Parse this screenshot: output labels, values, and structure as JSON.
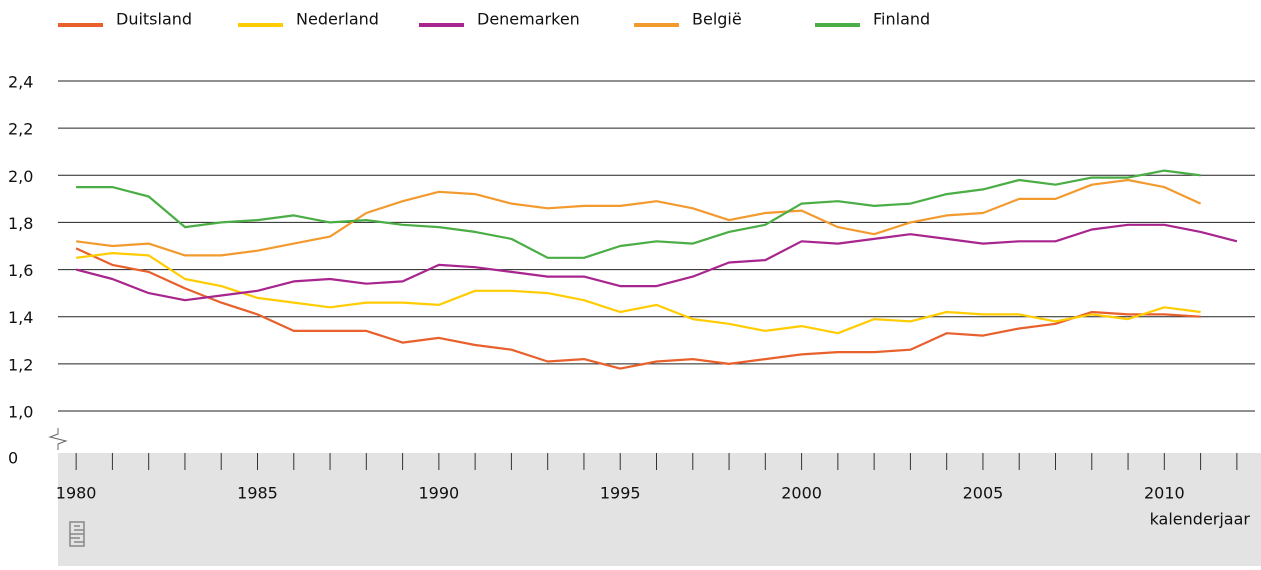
{
  "chart_data": {
    "type": "line",
    "x": [
      1980,
      1981,
      1982,
      1983,
      1984,
      1985,
      1986,
      1987,
      1988,
      1989,
      1990,
      1991,
      1992,
      1993,
      1994,
      1995,
      1996,
      1997,
      1998,
      1999,
      2000,
      2001,
      2002,
      2003,
      2004,
      2005,
      2006,
      2007,
      2008,
      2009,
      2010,
      2011,
      2012
    ],
    "series": [
      {
        "name": "Duitsland",
        "color": "#e8602c",
        "values": [
          1.69,
          1.62,
          1.59,
          1.52,
          1.46,
          1.41,
          1.34,
          1.34,
          1.34,
          1.29,
          1.31,
          1.28,
          1.26,
          1.21,
          1.22,
          1.18,
          1.21,
          1.22,
          1.2,
          1.22,
          1.24,
          1.25,
          1.25,
          1.26,
          1.33,
          1.32,
          1.35,
          1.37,
          1.42,
          1.41,
          1.41,
          1.4,
          null
        ]
      },
      {
        "name": "Nederland",
        "color": "#ffcc00",
        "values": [
          1.65,
          1.67,
          1.66,
          1.56,
          1.53,
          1.48,
          1.46,
          1.44,
          1.46,
          1.46,
          1.45,
          1.51,
          1.51,
          1.5,
          1.47,
          1.42,
          1.45,
          1.39,
          1.37,
          1.34,
          1.36,
          1.33,
          1.39,
          1.38,
          1.42,
          1.41,
          1.41,
          1.38,
          1.41,
          1.39,
          1.44,
          1.42,
          null
        ]
      },
      {
        "name": "Denemarken",
        "color": "#a8258e",
        "values": [
          1.6,
          1.56,
          1.5,
          1.47,
          1.49,
          1.51,
          1.55,
          1.56,
          1.54,
          1.55,
          1.62,
          1.61,
          1.59,
          1.57,
          1.57,
          1.53,
          1.53,
          1.57,
          1.63,
          1.64,
          1.72,
          1.71,
          1.73,
          1.75,
          1.73,
          1.71,
          1.72,
          1.72,
          1.77,
          1.79,
          1.79,
          1.76,
          1.72
        ]
      },
      {
        "name": "België",
        "color": "#f39a2f",
        "values": [
          1.72,
          1.7,
          1.71,
          1.66,
          1.66,
          1.68,
          1.71,
          1.74,
          1.84,
          1.89,
          1.93,
          1.92,
          1.88,
          1.86,
          1.87,
          1.87,
          1.89,
          1.86,
          1.81,
          1.84,
          1.85,
          1.78,
          1.75,
          1.8,
          1.83,
          1.84,
          1.9,
          1.9,
          1.96,
          1.98,
          1.95,
          1.88,
          null
        ]
      },
      {
        "name": "Finland",
        "color": "#4aad45",
        "values": [
          1.95,
          1.95,
          1.91,
          1.78,
          1.8,
          1.81,
          1.83,
          1.8,
          1.81,
          1.79,
          1.78,
          1.76,
          1.73,
          1.65,
          1.65,
          1.7,
          1.72,
          1.71,
          1.76,
          1.79,
          1.88,
          1.89,
          1.87,
          1.88,
          1.92,
          1.94,
          1.98,
          1.96,
          1.99,
          1.99,
          2.02,
          2.0,
          null
        ]
      }
    ],
    "xlabel": "kalenderjaar",
    "xlim": [
      1979.5,
      2012.5
    ],
    "xticks": [
      1980,
      1985,
      1990,
      1995,
      2000,
      2005,
      2010
    ],
    "ylim": [
      0,
      2.4
    ],
    "y_break": [
      0,
      1
    ],
    "yticks": [
      0,
      {
        "value": 1,
        "label": "1,0"
      },
      {
        "value": 1.2,
        "label": "1,2"
      },
      {
        "value": 1.4,
        "label": "1,4"
      },
      {
        "value": 1.6,
        "label": "1,6"
      },
      {
        "value": 1.8,
        "label": "1,8"
      },
      {
        "value": 2,
        "label": "2,0"
      },
      {
        "value": 2.2,
        "label": "2,2"
      },
      {
        "value": 2.4,
        "label": "2,4"
      }
    ],
    "grid": true,
    "legend": "top"
  }
}
